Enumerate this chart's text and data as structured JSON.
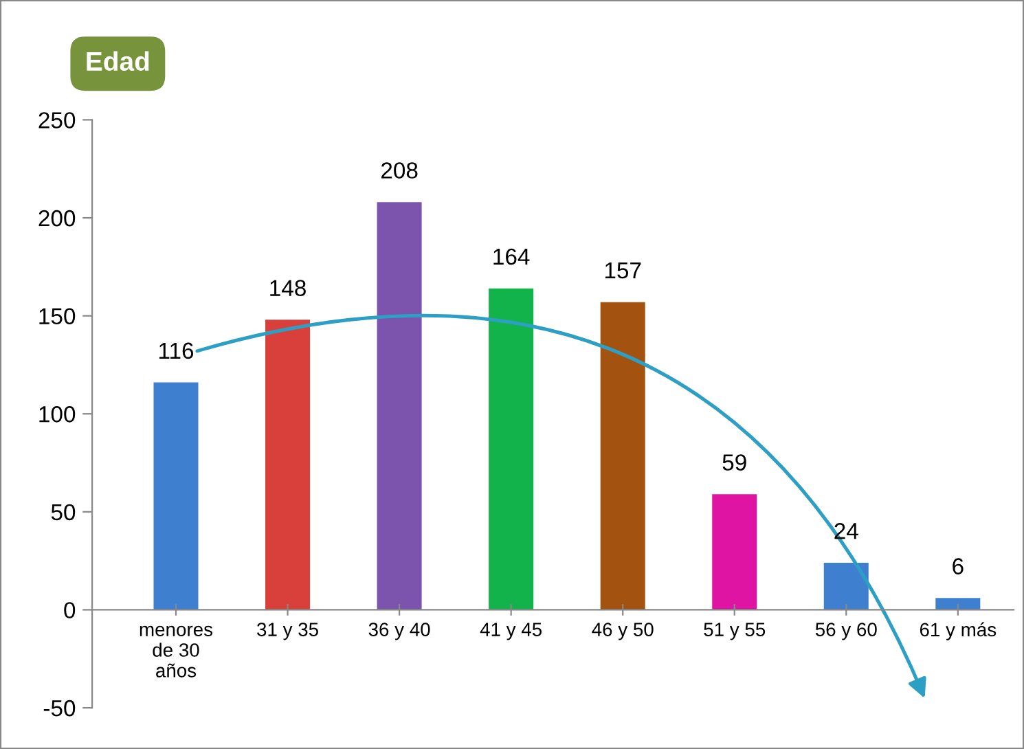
{
  "chart_data": {
    "type": "bar",
    "title": "Edad",
    "categories": [
      "menores\nde 30\naños",
      "31 y 35",
      "36 y 40",
      "41 y 45",
      "46 y 50",
      "51 y 55",
      "56 y 60",
      "61 y más"
    ],
    "values": [
      116,
      148,
      208,
      164,
      157,
      59,
      24,
      6
    ],
    "colors": [
      "#3f7fcf",
      "#d9403c",
      "#7d54ad",
      "#12b34a",
      "#a3520f",
      "#e014a3",
      "#3f7fcf",
      "#3f7fcf"
    ],
    "ylim": [
      -50,
      250
    ],
    "yticks": [
      -50,
      0,
      50,
      100,
      150,
      200,
      250
    ],
    "grid": false,
    "data_labels": true
  }
}
